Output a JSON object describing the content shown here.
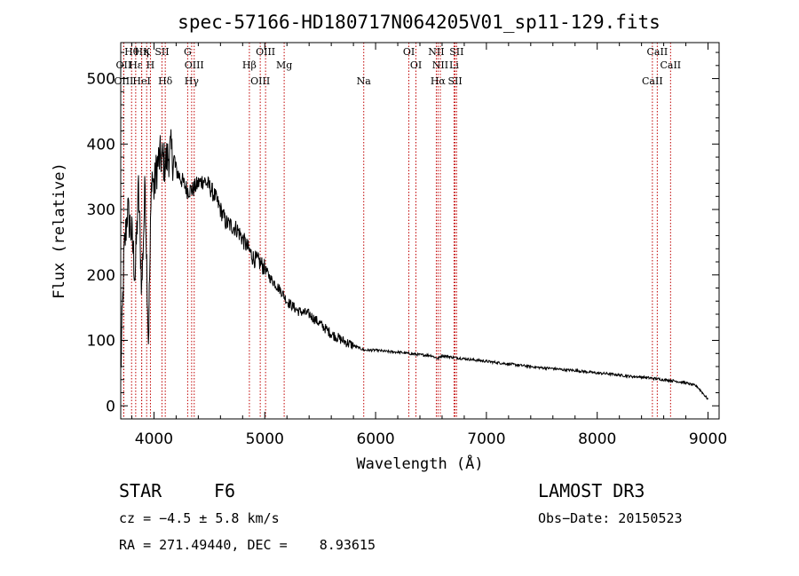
{
  "chart_data": {
    "type": "line",
    "title": "spec-57166-HD180717N064205V01_sp11-129.fits",
    "xlabel": "Wavelength (Å)",
    "ylabel": "Flux (relative)",
    "xlim": [
      3700,
      9100
    ],
    "ylim": [
      -20,
      555
    ],
    "xticks": [
      4000,
      5000,
      6000,
      7000,
      8000,
      9000
    ],
    "yticks": [
      0,
      100,
      200,
      300,
      400,
      500
    ],
    "series": [
      {
        "name": "flux",
        "x": [
          3700,
          3730,
          3760,
          3800,
          3830,
          3860,
          3890,
          3920,
          3950,
          3980,
          4000,
          4030,
          4060,
          4100,
          4150,
          4200,
          4250,
          4300,
          4350,
          4400,
          4450,
          4500,
          4550,
          4600,
          4650,
          4700,
          4750,
          4800,
          4850,
          4900,
          4950,
          5000,
          5050,
          5100,
          5150,
          5200,
          5300,
          5400,
          5500,
          5600,
          5700,
          5800,
          5900,
          6000,
          6100,
          6200,
          6300,
          6400,
          6500,
          6563,
          6600,
          6700,
          6800,
          6900,
          7000,
          7100,
          7200,
          7300,
          7400,
          7500,
          7600,
          7700,
          7800,
          7900,
          8000,
          8100,
          8200,
          8300,
          8400,
          8500,
          8600,
          8700,
          8800,
          8900,
          9000
        ],
        "values": [
          50,
          230,
          300,
          260,
          200,
          330,
          180,
          340,
          100,
          360,
          330,
          370,
          380,
          370,
          390,
          360,
          345,
          330,
          330,
          340,
          345,
          335,
          320,
          300,
          280,
          275,
          270,
          255,
          240,
          225,
          220,
          210,
          195,
          185,
          175,
          160,
          145,
          140,
          125,
          110,
          100,
          92,
          85,
          85,
          83,
          82,
          80,
          78,
          77,
          72,
          77,
          74,
          72,
          70,
          68,
          66,
          64,
          62,
          60,
          58,
          57,
          55,
          54,
          52,
          50,
          49,
          47,
          45,
          44,
          42,
          40,
          38,
          35,
          30,
          10
        ]
      }
    ],
    "spectral_lines": [
      {
        "label": "Hθ",
        "wavelength": 3798
      },
      {
        "label": "OII",
        "wavelength": 3727
      },
      {
        "label": "OIII",
        "wavelength": 3727
      },
      {
        "label": "K",
        "wavelength": 3934
      },
      {
        "label": "Hε",
        "wavelength": 3835
      },
      {
        "label": "HeI",
        "wavelength": 3889
      },
      {
        "label": "Hη",
        "wavelength": 3889
      },
      {
        "label": "H",
        "wavelength": 3968
      },
      {
        "label": "Hδ",
        "wavelength": 4102
      },
      {
        "label": "SII",
        "wavelength": 4072
      },
      {
        "label": "OIII",
        "wavelength": 4363
      },
      {
        "label": "Hγ",
        "wavelength": 4340
      },
      {
        "label": "G",
        "wavelength": 4304
      },
      {
        "label": "Hβ",
        "wavelength": 4861
      },
      {
        "label": "OIII",
        "wavelength": 4959
      },
      {
        "label": "OIII",
        "wavelength": 5007
      },
      {
        "label": "Mg",
        "wavelength": 5175
      },
      {
        "label": "Na",
        "wavelength": 5893
      },
      {
        "label": "OI",
        "wavelength": 6300
      },
      {
        "label": "OI",
        "wavelength": 6364
      },
      {
        "label": "Hα",
        "wavelength": 6563
      },
      {
        "label": "NII",
        "wavelength": 6548
      },
      {
        "label": "NII",
        "wavelength": 6584
      },
      {
        "label": "SII",
        "wavelength": 6717
      },
      {
        "label": "SII",
        "wavelength": 6731
      },
      {
        "label": "Li",
        "wavelength": 6708
      },
      {
        "label": "CaII",
        "wavelength": 8498
      },
      {
        "label": "CaII",
        "wavelength": 8542
      },
      {
        "label": "CaII",
        "wavelength": 8662
      }
    ]
  },
  "info": {
    "object_class": "STAR",
    "subclass": "F6",
    "survey": "LAMOST DR3",
    "velocity": "cz = −4.5 ± 5.8 km/s",
    "obs_date": "Obs−Date: 20150523",
    "coords": "RA = 271.49440, DEC =    8.93615"
  }
}
